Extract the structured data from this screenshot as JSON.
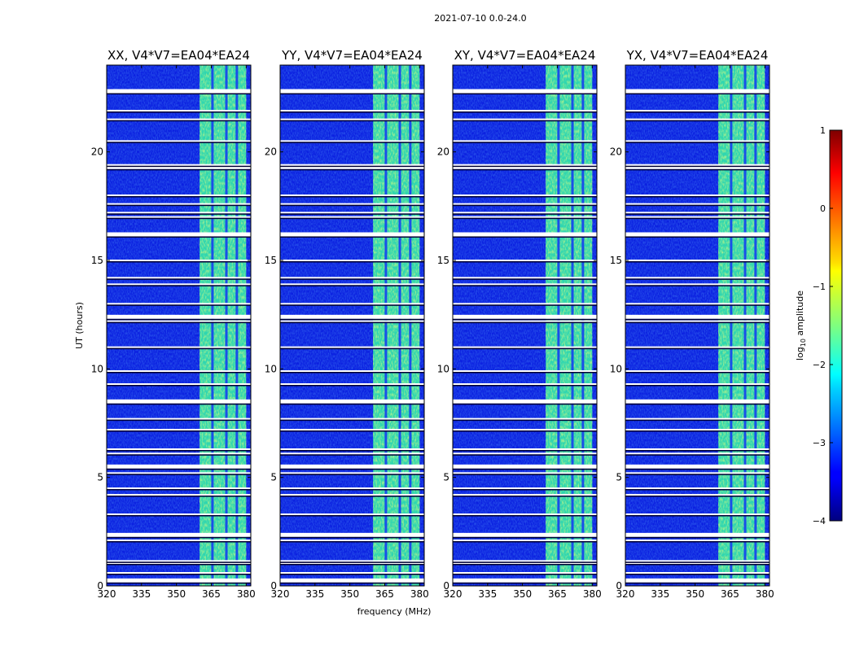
{
  "chart_data": {
    "type": "heatmap",
    "suptitle": "2021-07-10 0.0-24.0",
    "xlabel": "frequency (MHz)",
    "ylabel": "UT (hours)",
    "xlim": [
      320,
      382
    ],
    "ylim": [
      0,
      24
    ],
    "xticks": [
      "320",
      "335",
      "350",
      "365",
      "380"
    ],
    "yticks": [
      "0",
      "5",
      "10",
      "15",
      "20"
    ],
    "panels": [
      {
        "title": "XX, V4*V7=EA04*EA24"
      },
      {
        "title": "YY, V4*V7=EA04*EA24"
      },
      {
        "title": "XY, V4*V7=EA04*EA24"
      },
      {
        "title": "YX, V4*V7=EA04*EA24"
      }
    ],
    "band_mhz": [
      360,
      380
    ],
    "band_subchannel_edges_mhz": [
      365.5,
      371.5,
      376
    ],
    "flagged_hours": [
      0.25,
      0.6,
      1.05,
      1.15,
      2.1,
      2.35,
      3.3,
      4.2,
      4.5,
      5.2,
      5.5,
      6.1,
      6.3,
      7.2,
      7.7,
      8.5,
      9.3,
      9.9,
      11.0,
      12.2,
      12.4,
      13.0,
      13.9,
      14.2,
      15.0,
      16.2,
      17.0,
      17.2,
      17.6,
      18.0,
      19.3,
      19.4,
      20.5,
      21.5,
      21.9,
      22.8
    ],
    "colorbar": {
      "label": "log10 amplitude",
      "label_main": "log",
      "label_sub": "10",
      "label_rest": " amplitude",
      "range": [
        -4,
        1
      ],
      "ticks": [
        "−4",
        "−3",
        "−2",
        "−1",
        "0",
        "1"
      ],
      "colormap": "jet"
    }
  }
}
